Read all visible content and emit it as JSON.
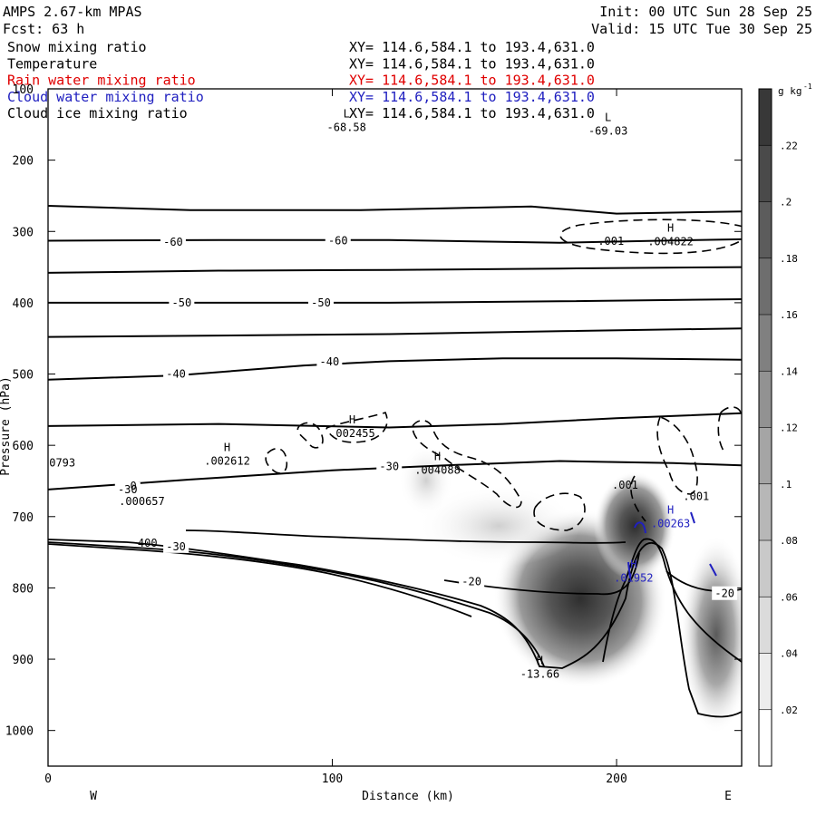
{
  "header": {
    "left1": "AMPS 2.67-km MPAS",
    "left2": "Fcst:    63 h",
    "right1": "Init: 00 UTC Sun 28 Sep 25",
    "right2": "Valid: 15 UTC Tue 30 Sep 25"
  },
  "fields": [
    {
      "name": "Snow mixing ratio",
      "xy": "XY= 114.6,584.1 to 193.4,631.0",
      "color": "#000000"
    },
    {
      "name": "Temperature",
      "xy": "XY= 114.6,584.1 to 193.4,631.0",
      "color": "#000000"
    },
    {
      "name": "Rain water mixing ratio",
      "xy": "XY= 114.6,584.1 to 193.4,631.0",
      "color": "#e00000"
    },
    {
      "name": "Cloud water mixing ratio",
      "xy": "XY= 114.6,584.1 to 193.4,631.0",
      "color": "#2020c0"
    },
    {
      "name": "Cloud ice mixing ratio",
      "xy": "XY= 114.6,584.1 to 193.4,631.0",
      "color": "#000000"
    }
  ],
  "chart_data": {
    "type": "contour cross-section",
    "xlabel": "Distance (km)",
    "ylabel": "Pressure (hPa)",
    "xlim": [
      0,
      244
    ],
    "ylim": [
      1050,
      100
    ],
    "x_ticks": [
      0,
      100,
      200
    ],
    "y_ticks": [
      100,
      200,
      300,
      400,
      500,
      600,
      700,
      800,
      900,
      1000
    ],
    "x_end_labels": {
      "left": "W",
      "right": "E"
    },
    "colorbar": {
      "unit": "g kg",
      "unit_exp": "-1",
      "labels": [
        ".02",
        ".04",
        ".06",
        ".08",
        ".1",
        ".12",
        ".14",
        ".16",
        ".18",
        ".2",
        ".22"
      ],
      "values": [
        0.02,
        0.04,
        0.06,
        0.08,
        0.1,
        0.12,
        0.14,
        0.16,
        0.18,
        0.2,
        0.22
      ],
      "max": 0.24
    },
    "isotherm_labels": [
      {
        "text": "-60",
        "x": 44,
        "p": 315
      },
      {
        "text": "-60",
        "x": 102,
        "p": 313
      },
      {
        "text": "-50",
        "x": 47,
        "p": 400
      },
      {
        "text": "-50",
        "x": 96,
        "p": 400
      },
      {
        "text": "-40",
        "x": 45,
        "p": 500
      },
      {
        "text": "-40",
        "x": 99,
        "p": 483
      },
      {
        "text": "-30",
        "x": 120,
        "p": 630
      },
      {
        "text": "-30",
        "x": 28,
        "p": 662
      },
      {
        "text": "-30",
        "x": 45,
        "p": 742
      },
      {
        "text": "-20",
        "x": 149,
        "p": 791
      },
      {
        "text": "-20",
        "x": 238,
        "p": 808
      }
    ],
    "extrema": [
      {
        "type": "L",
        "value": "-68.58",
        "x": 105,
        "p": 140,
        "color": "#000000"
      },
      {
        "type": "L",
        "value": "-69.03",
        "x": 197,
        "p": 145,
        "color": "#000000"
      },
      {
        "type": "H",
        "value": ".004822",
        "x": 219,
        "p": 300,
        "color": "#000000"
      },
      {
        "type": "H",
        "value": ".002455",
        "x": 107,
        "p": 569,
        "color": "#000000"
      },
      {
        "type": "H",
        "value": ".002612",
        "x": 63,
        "p": 608,
        "color": "#000000"
      },
      {
        "type": "H",
        "value": ".004088",
        "x": 137,
        "p": 621,
        "color": "#000000"
      },
      {
        "type": "H",
        "value": ".00263",
        "x": 219,
        "p": 696,
        "color": "#2020c0"
      },
      {
        "type": "H",
        "value": ".01952",
        "x": 206,
        "p": 772,
        "color": "#2020c0"
      },
      {
        "type": "H",
        "value": "-13.66",
        "x": 173,
        "p": 907,
        "color": "#000000"
      }
    ],
    "other_labels": [
      {
        "text": ".001",
        "x": 198,
        "p": 319
      },
      {
        "text": ".001",
        "x": 203,
        "p": 661
      },
      {
        "text": ".001",
        "x": 228,
        "p": 677
      },
      {
        "text": "0793",
        "x": 5,
        "p": 630
      },
      {
        "text": ".000657",
        "x": 33,
        "p": 684
      },
      {
        "text": "0",
        "x": 30,
        "p": 662
      },
      {
        "text": "400",
        "x": 35,
        "p": 742
      }
    ],
    "isotherms": [
      {
        "level": -65,
        "points": [
          [
            0,
            264
          ],
          [
            50,
            270
          ],
          [
            110,
            270
          ],
          [
            170,
            265
          ],
          [
            200,
            275
          ],
          [
            244,
            272
          ]
        ]
      },
      {
        "level": -60,
        "points": [
          [
            0,
            313
          ],
          [
            60,
            312
          ],
          [
            120,
            312
          ],
          [
            180,
            316
          ],
          [
            215,
            313
          ],
          [
            244,
            311
          ]
        ]
      },
      {
        "level": -55,
        "points": [
          [
            0,
            358
          ],
          [
            60,
            355
          ],
          [
            120,
            354
          ],
          [
            180,
            352
          ],
          [
            244,
            350
          ]
        ]
      },
      {
        "level": -50,
        "points": [
          [
            0,
            400
          ],
          [
            60,
            400
          ],
          [
            120,
            400
          ],
          [
            180,
            398
          ],
          [
            244,
            395
          ]
        ]
      },
      {
        "level": -45,
        "points": [
          [
            0,
            448
          ],
          [
            60,
            446
          ],
          [
            120,
            444
          ],
          [
            180,
            440
          ],
          [
            244,
            436
          ]
        ]
      },
      {
        "level": -40,
        "points": [
          [
            0,
            508
          ],
          [
            45,
            502
          ],
          [
            90,
            488
          ],
          [
            120,
            482
          ],
          [
            160,
            478
          ],
          [
            200,
            478
          ],
          [
            244,
            480
          ]
        ]
      },
      {
        "level": -35,
        "points": [
          [
            0,
            573
          ],
          [
            60,
            570
          ],
          [
            120,
            575
          ],
          [
            160,
            570
          ],
          [
            200,
            562
          ],
          [
            244,
            555
          ]
        ]
      },
      {
        "level": -30,
        "points": [
          [
            0,
            662
          ],
          [
            50,
            648
          ],
          [
            100,
            635
          ],
          [
            140,
            628
          ],
          [
            180,
            622
          ],
          [
            220,
            625
          ],
          [
            244,
            628
          ]
        ]
      }
    ]
  }
}
